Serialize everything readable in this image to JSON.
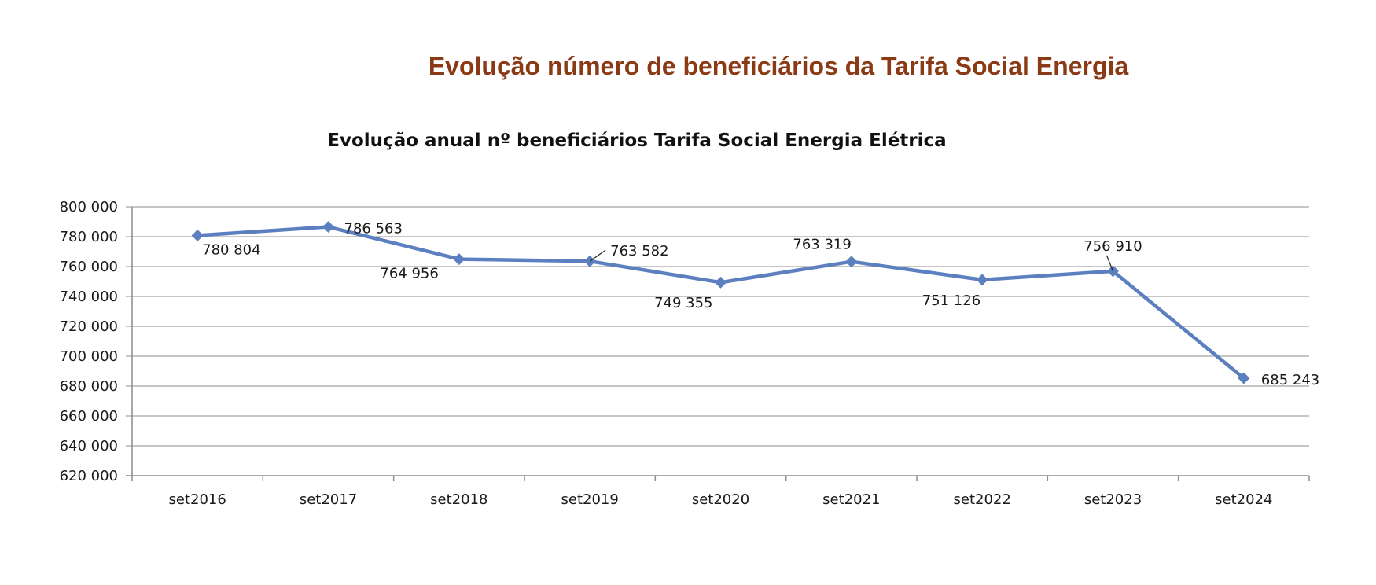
{
  "page": {
    "heading": "Evolução número de beneficiários da Tarifa Social Energia"
  },
  "chart_data": {
    "type": "line",
    "title": "Evolução anual nº beneficiários Tarifa Social Energia Elétrica",
    "xlabel": "",
    "ylabel": "",
    "categories": [
      "set2016",
      "set2017",
      "set2018",
      "set2019",
      "set2020",
      "set2021",
      "set2022",
      "set2023",
      "set2024"
    ],
    "series": [
      {
        "values": [
          780804,
          786563,
          764956,
          763582,
          749355,
          763319,
          751126,
          756910,
          685243
        ],
        "labels": [
          "780 804",
          "786 563",
          "764 956",
          "763 582",
          "749 355",
          "763 319",
          "751 126",
          "756 910",
          "685 243"
        ]
      }
    ],
    "ylim": [
      620000,
      800000
    ],
    "ytick_step": 20000,
    "ytick_labels": [
      "620 000",
      "640 000",
      "660 000",
      "680 000",
      "700 000",
      "720 000",
      "740 000",
      "760 000",
      "780 000",
      "800 000"
    ],
    "grid": true,
    "legend": "none",
    "colors": {
      "line": "#5b7fbf",
      "grid": "#b3b3b3",
      "axis": "#8c8c8c",
      "heading": "#8b3a16"
    }
  }
}
